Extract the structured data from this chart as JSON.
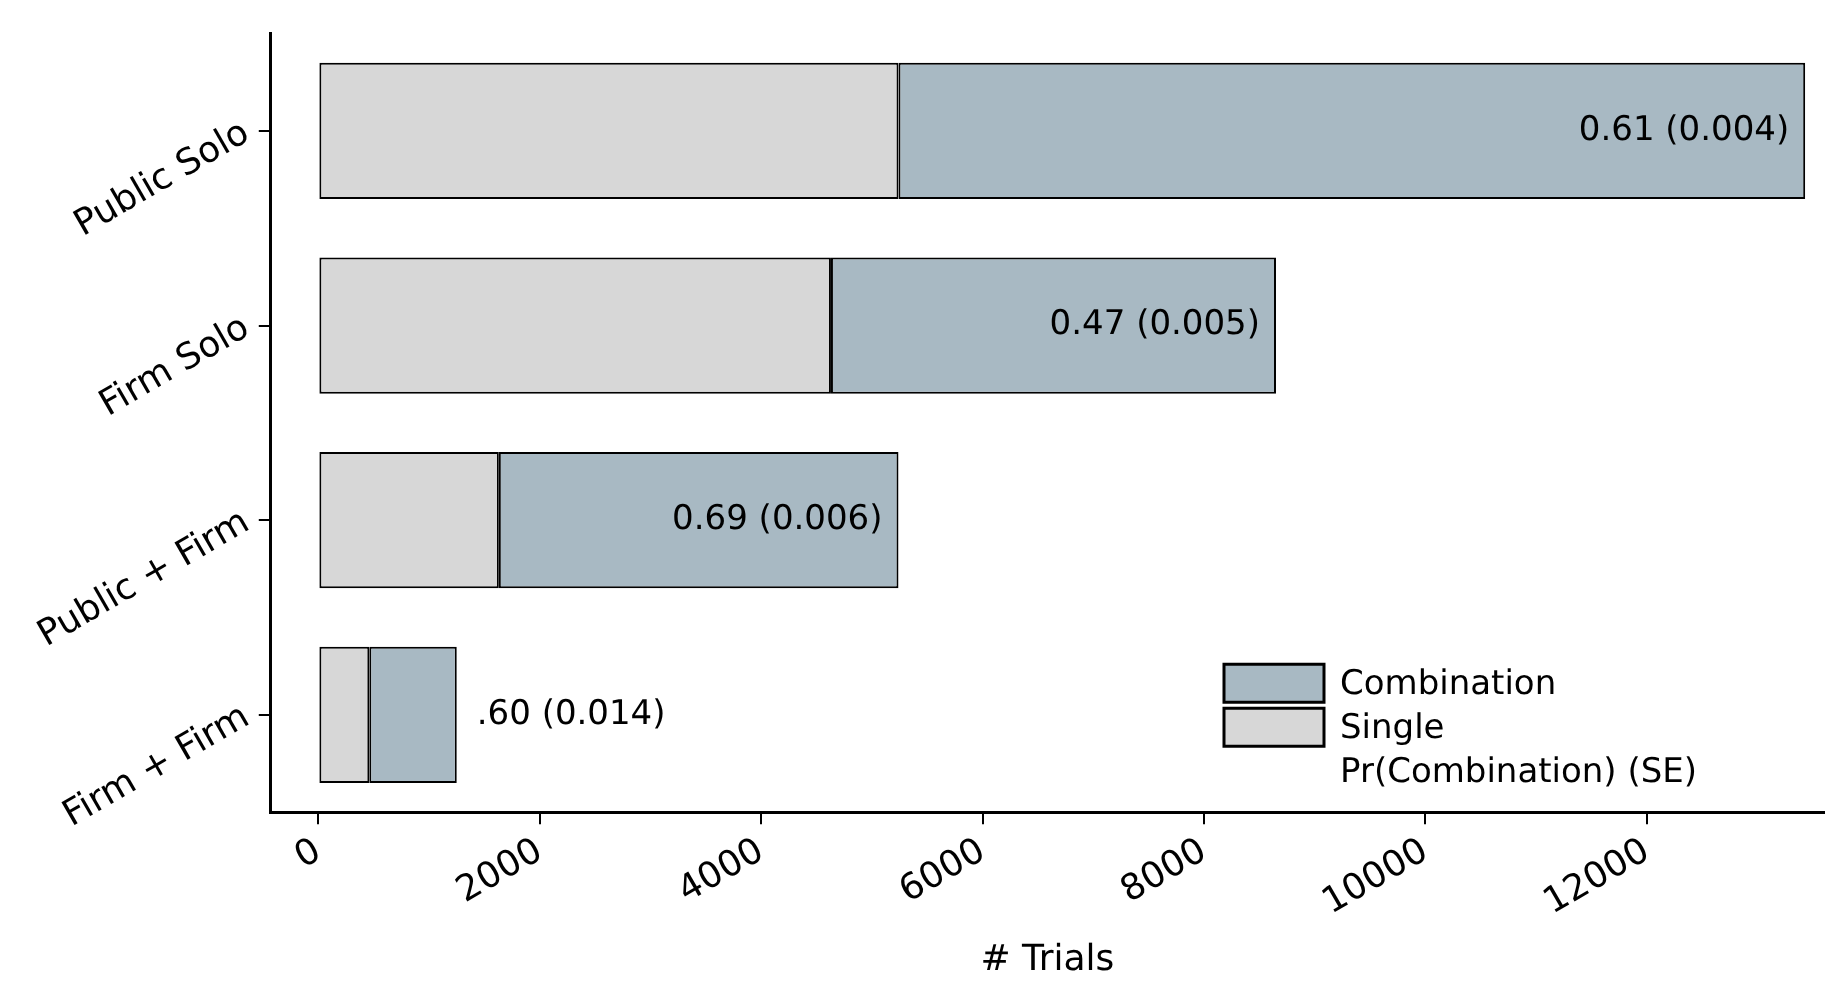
{
  "chart_data": {
    "type": "bar",
    "orientation": "horizontal",
    "stacked": true,
    "xlabel": "# Trials",
    "categories": [
      "Public Solo",
      "Firm Solo",
      "Public + Firm",
      "Firm + Firm"
    ],
    "series": [
      {
        "name": "Single",
        "color": "#d7d7d7",
        "values": [
          5240,
          4630,
          1630,
          460
        ]
      },
      {
        "name": "Combination",
        "color": "#a8b9c3",
        "values": [
          8190,
          4020,
          3610,
          790
        ]
      }
    ],
    "xlim": [
      -430,
      13600
    ],
    "xticks": [
      0,
      2000,
      4000,
      6000,
      8000,
      10000,
      12000
    ],
    "legend": "bottom right",
    "annotations": [
      "0.61 (0.004)",
      "0.47 (0.005)",
      "0.69 (0.006)",
      ".60 (0.014)",
      "Pr(Combination) (SE)"
    ]
  }
}
